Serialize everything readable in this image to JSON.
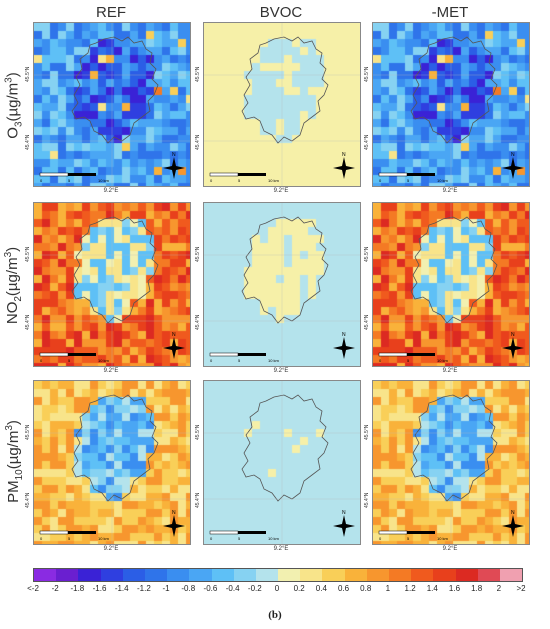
{
  "columns": [
    "REF",
    "BVOC",
    "-MET"
  ],
  "rows": [
    {
      "pre": "O",
      "sub": "3",
      "mid": "(µg/m",
      "sup": "3",
      "post": ")"
    },
    {
      "pre": "NO",
      "sub": "2",
      "mid": "(µg/m",
      "sup": "3",
      "post": ")"
    },
    {
      "pre": "PM",
      "sub": "10",
      "mid": "(µg/m",
      "sup": "3",
      "post": ")"
    }
  ],
  "axis": {
    "lat_top": "45.5°N",
    "lat_bottom": "45.4°N",
    "lon": "9.2°E"
  },
  "scalebar": {
    "zero": "0",
    "mid": "5",
    "end": "10 km"
  },
  "north_label": "N",
  "legend": {
    "ticks": [
      "<-2",
      "-2",
      "-1.8",
      "-1.6",
      "-1.4",
      "-1.2",
      "-1",
      "-0.8",
      "-0.6",
      "-0.4",
      "-0.2",
      "0",
      "0.2",
      "0.4",
      "0.6",
      "0.8",
      "1",
      "1.2",
      "1.4",
      "1.6",
      "1.8",
      "2",
      ">2"
    ],
    "colors": [
      "#8a2be2",
      "#6a1fd0",
      "#3a22d6",
      "#2f3fe0",
      "#2b5ee6",
      "#2f74ea",
      "#3a8ef0",
      "#4aa6f4",
      "#5ec0f6",
      "#86d2f2",
      "#b4e3ec",
      "#f2f0b0",
      "#f8e48a",
      "#f9cf58",
      "#f9b23a",
      "#f7962e",
      "#f47a24",
      "#f05a1e",
      "#e8401c",
      "#dc2a22",
      "#e04a55",
      "#f0a0b0"
    ]
  },
  "figure_label": "(b)"
}
